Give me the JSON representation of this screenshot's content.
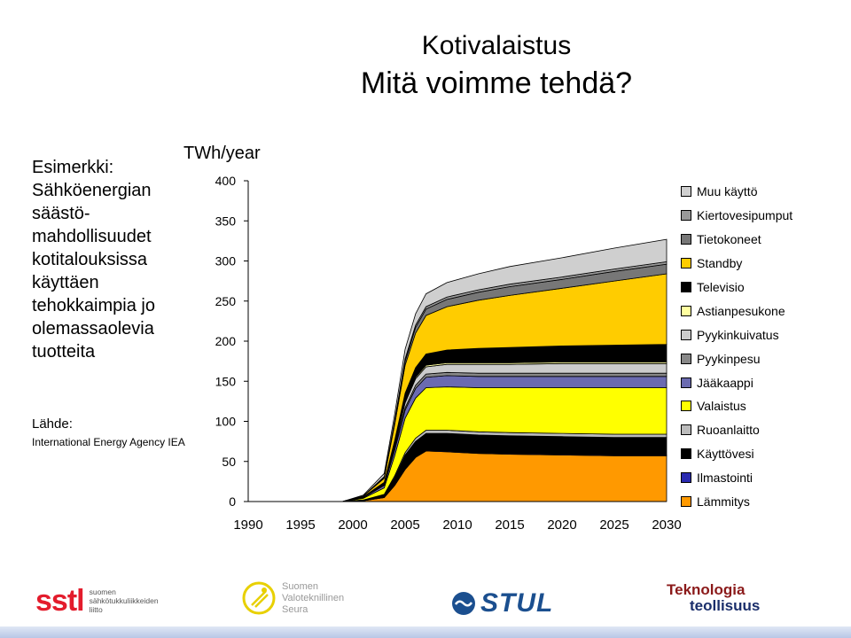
{
  "slide": {
    "title_line1": "Kotivalaistus",
    "title_line2": "Mitä voimme tehdä?",
    "left_lines": [
      "Esimerkki:",
      "Sähköenergian",
      "säästö-",
      "mahdollisuudet",
      "kotitalouksissa",
      "käyttäen",
      "tehokkaimpia jo",
      "olemassaolevia",
      "tuotteita"
    ],
    "source_label": "Lähde:",
    "source_name": "International Energy Agency  IEA"
  },
  "logos": {
    "sstl_big": "sstl",
    "sstl_small": [
      "suomen",
      "sähkötukkuliikkeiden",
      "liitto"
    ],
    "svs_small": [
      "Suomen",
      "Valoteknillinen",
      "Seura"
    ],
    "stul": "STUL",
    "tek_line1": "Teknologia",
    "tek_line2": "teollisuus"
  },
  "chart_data": {
    "type": "area",
    "stacked": true,
    "unit_label": "TWh/year",
    "ylim": [
      0,
      400
    ],
    "yticks": [
      0,
      50,
      100,
      150,
      200,
      250,
      300,
      350,
      400
    ],
    "xlim": [
      1990,
      2030
    ],
    "xticks": [
      1990,
      1995,
      2000,
      2005,
      2010,
      2015,
      2020,
      2025,
      2030
    ],
    "x": [
      1990,
      1999,
      2001,
      2003,
      2004,
      2005,
      2006,
      2007,
      2009,
      2012,
      2015,
      2020,
      2025,
      2030
    ],
    "legend_position": "right",
    "series": [
      {
        "name": "Lämmitys",
        "color": "#ff9900",
        "values": [
          0,
          0,
          1,
          5,
          20,
          40,
          55,
          63,
          62,
          60,
          59,
          58,
          57,
          57
        ]
      },
      {
        "name": "Ilmastointi",
        "color": "#2a2ab0",
        "values": [
          0,
          0,
          0,
          0,
          0,
          0,
          0,
          1,
          1,
          1,
          1,
          1,
          1,
          1
        ]
      },
      {
        "name": "Käyttövesi",
        "color": "#000000",
        "values": [
          0,
          0,
          1,
          3,
          10,
          18,
          20,
          21,
          22,
          22,
          22,
          22,
          22,
          22
        ]
      },
      {
        "name": "Ruoanlaitto",
        "color": "#bbbbbb",
        "values": [
          0,
          0,
          0,
          1,
          2,
          3,
          4,
          4,
          4,
          4,
          4,
          4,
          4,
          4
        ]
      },
      {
        "name": "Valaistus",
        "color": "#ffff00",
        "values": [
          0,
          0,
          2,
          8,
          25,
          43,
          50,
          53,
          54,
          55,
          56,
          57,
          58,
          58
        ]
      },
      {
        "name": "Jääkaappi",
        "color": "#6b6bb0",
        "values": [
          0,
          0,
          1,
          3,
          7,
          10,
          12,
          13,
          14,
          14,
          14,
          14,
          14,
          14
        ]
      },
      {
        "name": "Pyykinpesu",
        "color": "#888888",
        "values": [
          0,
          0,
          0,
          1,
          2,
          3,
          4,
          4,
          4,
          4,
          4,
          4,
          4,
          4
        ]
      },
      {
        "name": "Pyykinkuivatus",
        "color": "#cccccc",
        "values": [
          0,
          0,
          0,
          1,
          3,
          6,
          8,
          9,
          10,
          11,
          11,
          12,
          12,
          12
        ]
      },
      {
        "name": "Astianpesukone",
        "color": "#ffffa0",
        "values": [
          0,
          0,
          0,
          0,
          1,
          2,
          2,
          2,
          2,
          2,
          2,
          2,
          2,
          2
        ]
      },
      {
        "name": "Televisio",
        "color": "#000000",
        "values": [
          0,
          0,
          1,
          2,
          6,
          10,
          12,
          14,
          16,
          18,
          19,
          20,
          21,
          22
        ]
      },
      {
        "name": "Standby",
        "color": "#ffcc00",
        "values": [
          0,
          0,
          1,
          5,
          20,
          35,
          43,
          48,
          54,
          60,
          65,
          72,
          80,
          88
        ]
      },
      {
        "name": "Tietokoneet",
        "color": "#777777",
        "values": [
          0,
          0,
          0,
          1,
          3,
          5,
          7,
          8,
          9,
          10,
          11,
          11,
          12,
          12
        ]
      },
      {
        "name": "Kiertovesipumput",
        "color": "#999999",
        "values": [
          0,
          0,
          0,
          1,
          2,
          3,
          3,
          3,
          3,
          3,
          3,
          3,
          3,
          3
        ]
      },
      {
        "name": "Muu käyttö",
        "color": "#cfcfcf",
        "values": [
          0,
          0,
          1,
          4,
          8,
          12,
          14,
          16,
          18,
          20,
          22,
          24,
          26,
          28
        ]
      }
    ]
  }
}
